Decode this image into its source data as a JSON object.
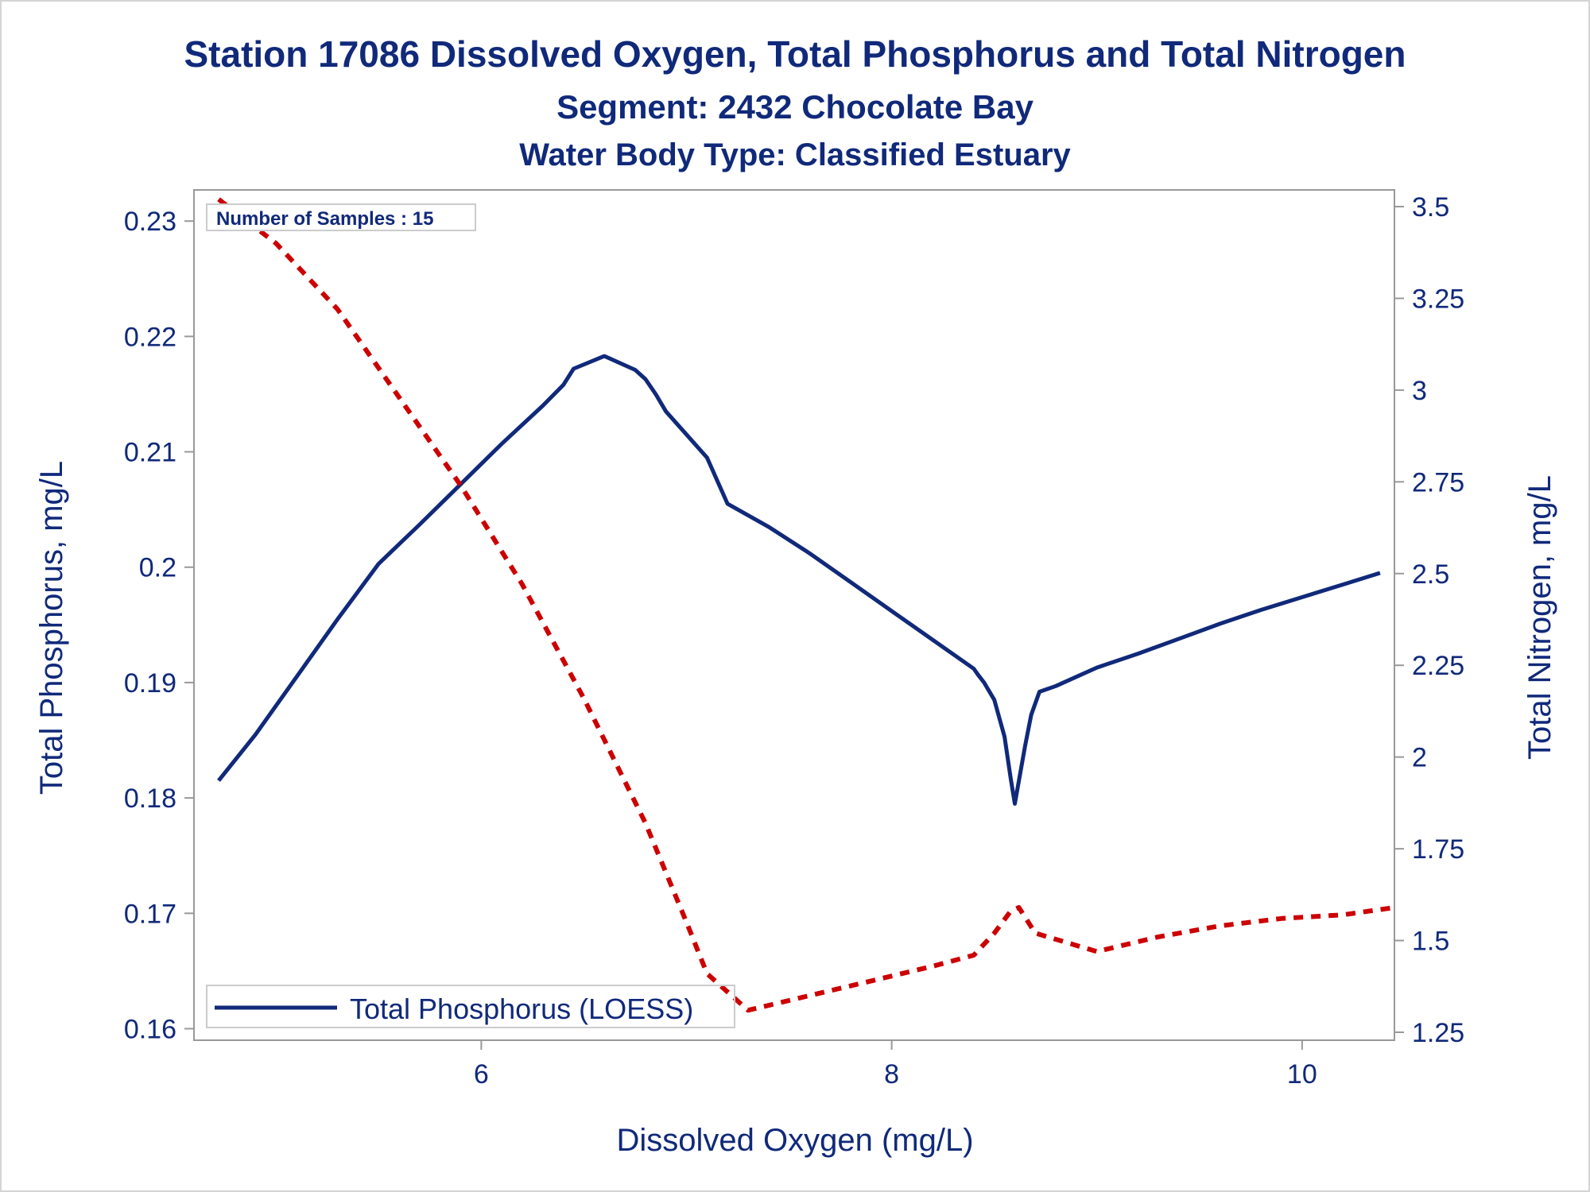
{
  "chart_data": {
    "type": "line",
    "title": "Station 17086  Dissolved Oxygen, Total Phosphorus and Total Nitrogen",
    "subtitle": "Segment: 2432  Chocolate Bay",
    "subtitle2": "Water Body Type: Classified Estuary",
    "xlabel": "Dissolved Oxygen (mg/L)",
    "ylabel_left": "Total Phosphorus, mg/L",
    "ylabel_right": "Total Nitrogen, mg/L",
    "inset_note": "Number of Samples : 15",
    "legend_label": "Total Phosphorus (LOESS)",
    "grid": false,
    "legend_position": "bottom-left",
    "xlim": [
      4.6,
      10.45
    ],
    "ylim_left": [
      0.159,
      0.2327
    ],
    "ylim_right": [
      1.25,
      3.5
    ],
    "x_ticks": [
      6,
      8,
      10
    ],
    "x_tick_labels": [
      "6",
      "8",
      "10"
    ],
    "y_left_ticks": [
      0.16,
      0.17,
      0.18,
      0.19,
      0.2,
      0.21,
      0.22,
      0.23
    ],
    "y_left_tick_labels": [
      "0.16",
      "0.17",
      "0.18",
      "0.19",
      "0.2",
      "0.21",
      "0.22",
      "0.23"
    ],
    "y_right_ticks": [
      1.25,
      1.5,
      1.75,
      2,
      2.25,
      2.5,
      2.75,
      3,
      3.25,
      3.5
    ],
    "y_right_tick_labels": [
      "1.25",
      "1.5",
      "1.75",
      "2",
      "2.25",
      "2.5",
      "2.75",
      "3",
      "3.25",
      "3.5"
    ],
    "series": [
      {
        "name": "Total Phosphorus (LOESS)",
        "axis": "left",
        "color": "#10297a",
        "style": "solid",
        "x": [
          4.72,
          4.9,
          5.1,
          5.3,
          5.5,
          5.7,
          5.9,
          6.1,
          6.3,
          6.4,
          6.45,
          6.6,
          6.75,
          6.8,
          6.85,
          6.9,
          7.0,
          7.1,
          7.15,
          7.2,
          7.4,
          7.6,
          7.8,
          8.0,
          8.2,
          8.4,
          8.42,
          8.45,
          8.5,
          8.55,
          8.58,
          8.6,
          8.65,
          8.68,
          8.72,
          8.8,
          8.9,
          9.0,
          9.2,
          9.4,
          9.6,
          9.8,
          10.0,
          10.2,
          10.38
        ],
        "y": [
          0.1815,
          0.1855,
          0.1905,
          0.1955,
          0.2003,
          0.2037,
          0.2072,
          0.2107,
          0.214,
          0.2158,
          0.2172,
          0.2183,
          0.2171,
          0.2163,
          0.215,
          0.2135,
          0.2115,
          0.2095,
          0.2075,
          0.2055,
          0.2035,
          0.2012,
          0.1987,
          0.1962,
          0.1937,
          0.1912,
          0.1907,
          0.19,
          0.1885,
          0.1853,
          0.1817,
          0.1795,
          0.1845,
          0.1872,
          0.1892,
          0.1897,
          0.1905,
          0.1913,
          0.1925,
          0.1938,
          0.1951,
          0.1963,
          0.1974,
          0.1985,
          0.1995
        ]
      },
      {
        "name": "",
        "axis": "right",
        "color": "#cc0000",
        "style": "dashed",
        "x": [
          4.72,
          5.0,
          5.3,
          5.6,
          5.9,
          6.2,
          6.5,
          6.8,
          7.0,
          7.1,
          7.3,
          7.6,
          7.9,
          8.2,
          8.4,
          8.5,
          8.58,
          8.62,
          8.7,
          9.0,
          9.3,
          9.6,
          9.9,
          10.2,
          10.45
        ],
        "y": [
          3.52,
          3.4,
          3.22,
          2.98,
          2.74,
          2.47,
          2.16,
          1.82,
          1.55,
          1.41,
          1.31,
          1.35,
          1.39,
          1.43,
          1.46,
          1.52,
          1.58,
          1.59,
          1.52,
          1.47,
          1.51,
          1.54,
          1.56,
          1.57,
          1.59
        ]
      }
    ]
  }
}
